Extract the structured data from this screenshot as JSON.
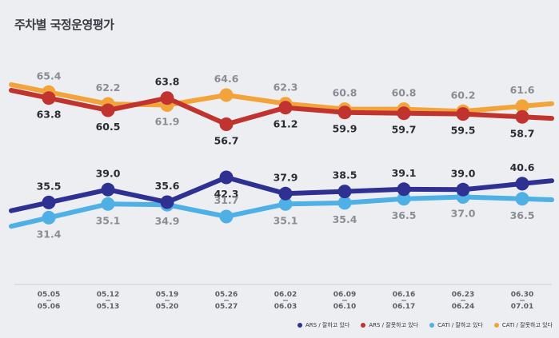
{
  "title": "주차별 국정운영평가",
  "chart_data": {
    "type": "line",
    "title": "주차별 국정운영평가",
    "categories": [
      [
        "05.05",
        "05.06"
      ],
      [
        "05.12",
        "05.13"
      ],
      [
        "05.19",
        "05.20"
      ],
      [
        "05.26",
        "05.27"
      ],
      [
        "06.02",
        "06.03"
      ],
      [
        "06.09",
        "06.10"
      ],
      [
        "06.16",
        "06.17"
      ],
      [
        "06.23",
        "06.24"
      ],
      [
        "06.30",
        "07.01"
      ]
    ],
    "ylim": [
      20,
      75
    ],
    "grid": false,
    "legend_position": "bottom-right",
    "series": [
      {
        "name": "CATI / 잘못하고 있다",
        "color": "#f2a43a",
        "values": [
          65.4,
          62.2,
          61.9,
          64.6,
          62.3,
          60.8,
          60.8,
          60.2,
          61.6
        ],
        "labels": [
          "65.4",
          "62.2",
          "61.9",
          "64.6",
          "62.3",
          "60.8",
          "60.8",
          "60.2",
          "61.6"
        ]
      },
      {
        "name": "ARS / 잘못하고 있다",
        "color": "#c0332e",
        "values": [
          63.8,
          60.5,
          63.8,
          56.7,
          61.2,
          59.9,
          59.7,
          59.5,
          58.7
        ],
        "labels": [
          "63.8",
          "60.5",
          "63.8",
          "56.7",
          "61.2",
          "59.9",
          "59.7",
          "59.5",
          "58.7"
        ]
      },
      {
        "name": "ARS / 잘하고 있다",
        "color": "#2e3192",
        "values": [
          35.5,
          39.0,
          35.6,
          42.3,
          37.9,
          38.5,
          39.1,
          39.0,
          40.6
        ],
        "labels": [
          "35.5",
          "39.0",
          "35.6",
          "42.3",
          "37.9",
          "38.5",
          "39.1",
          "39.0",
          "40.6"
        ]
      },
      {
        "name": "CATI / 잘하고 있다",
        "color": "#4fb0e6",
        "values": [
          31.4,
          35.1,
          34.9,
          31.7,
          35.1,
          35.4,
          36.5,
          37.0,
          36.5
        ],
        "labels": [
          "31.4",
          "35.1",
          "34.9",
          "31.7",
          "35.1",
          "35.4",
          "36.5",
          "37.0",
          "36.5"
        ]
      }
    ]
  },
  "legend": [
    {
      "label": "ARS / 잘하고 있다",
      "color": "#2e3192"
    },
    {
      "label": "ARS / 잘못하고 있다",
      "color": "#c0332e"
    },
    {
      "label": "CATI / 잘하고 있다",
      "color": "#4fb0e6"
    },
    {
      "label": "CATI / 잘못하고 있다",
      "color": "#f2a43a"
    }
  ]
}
